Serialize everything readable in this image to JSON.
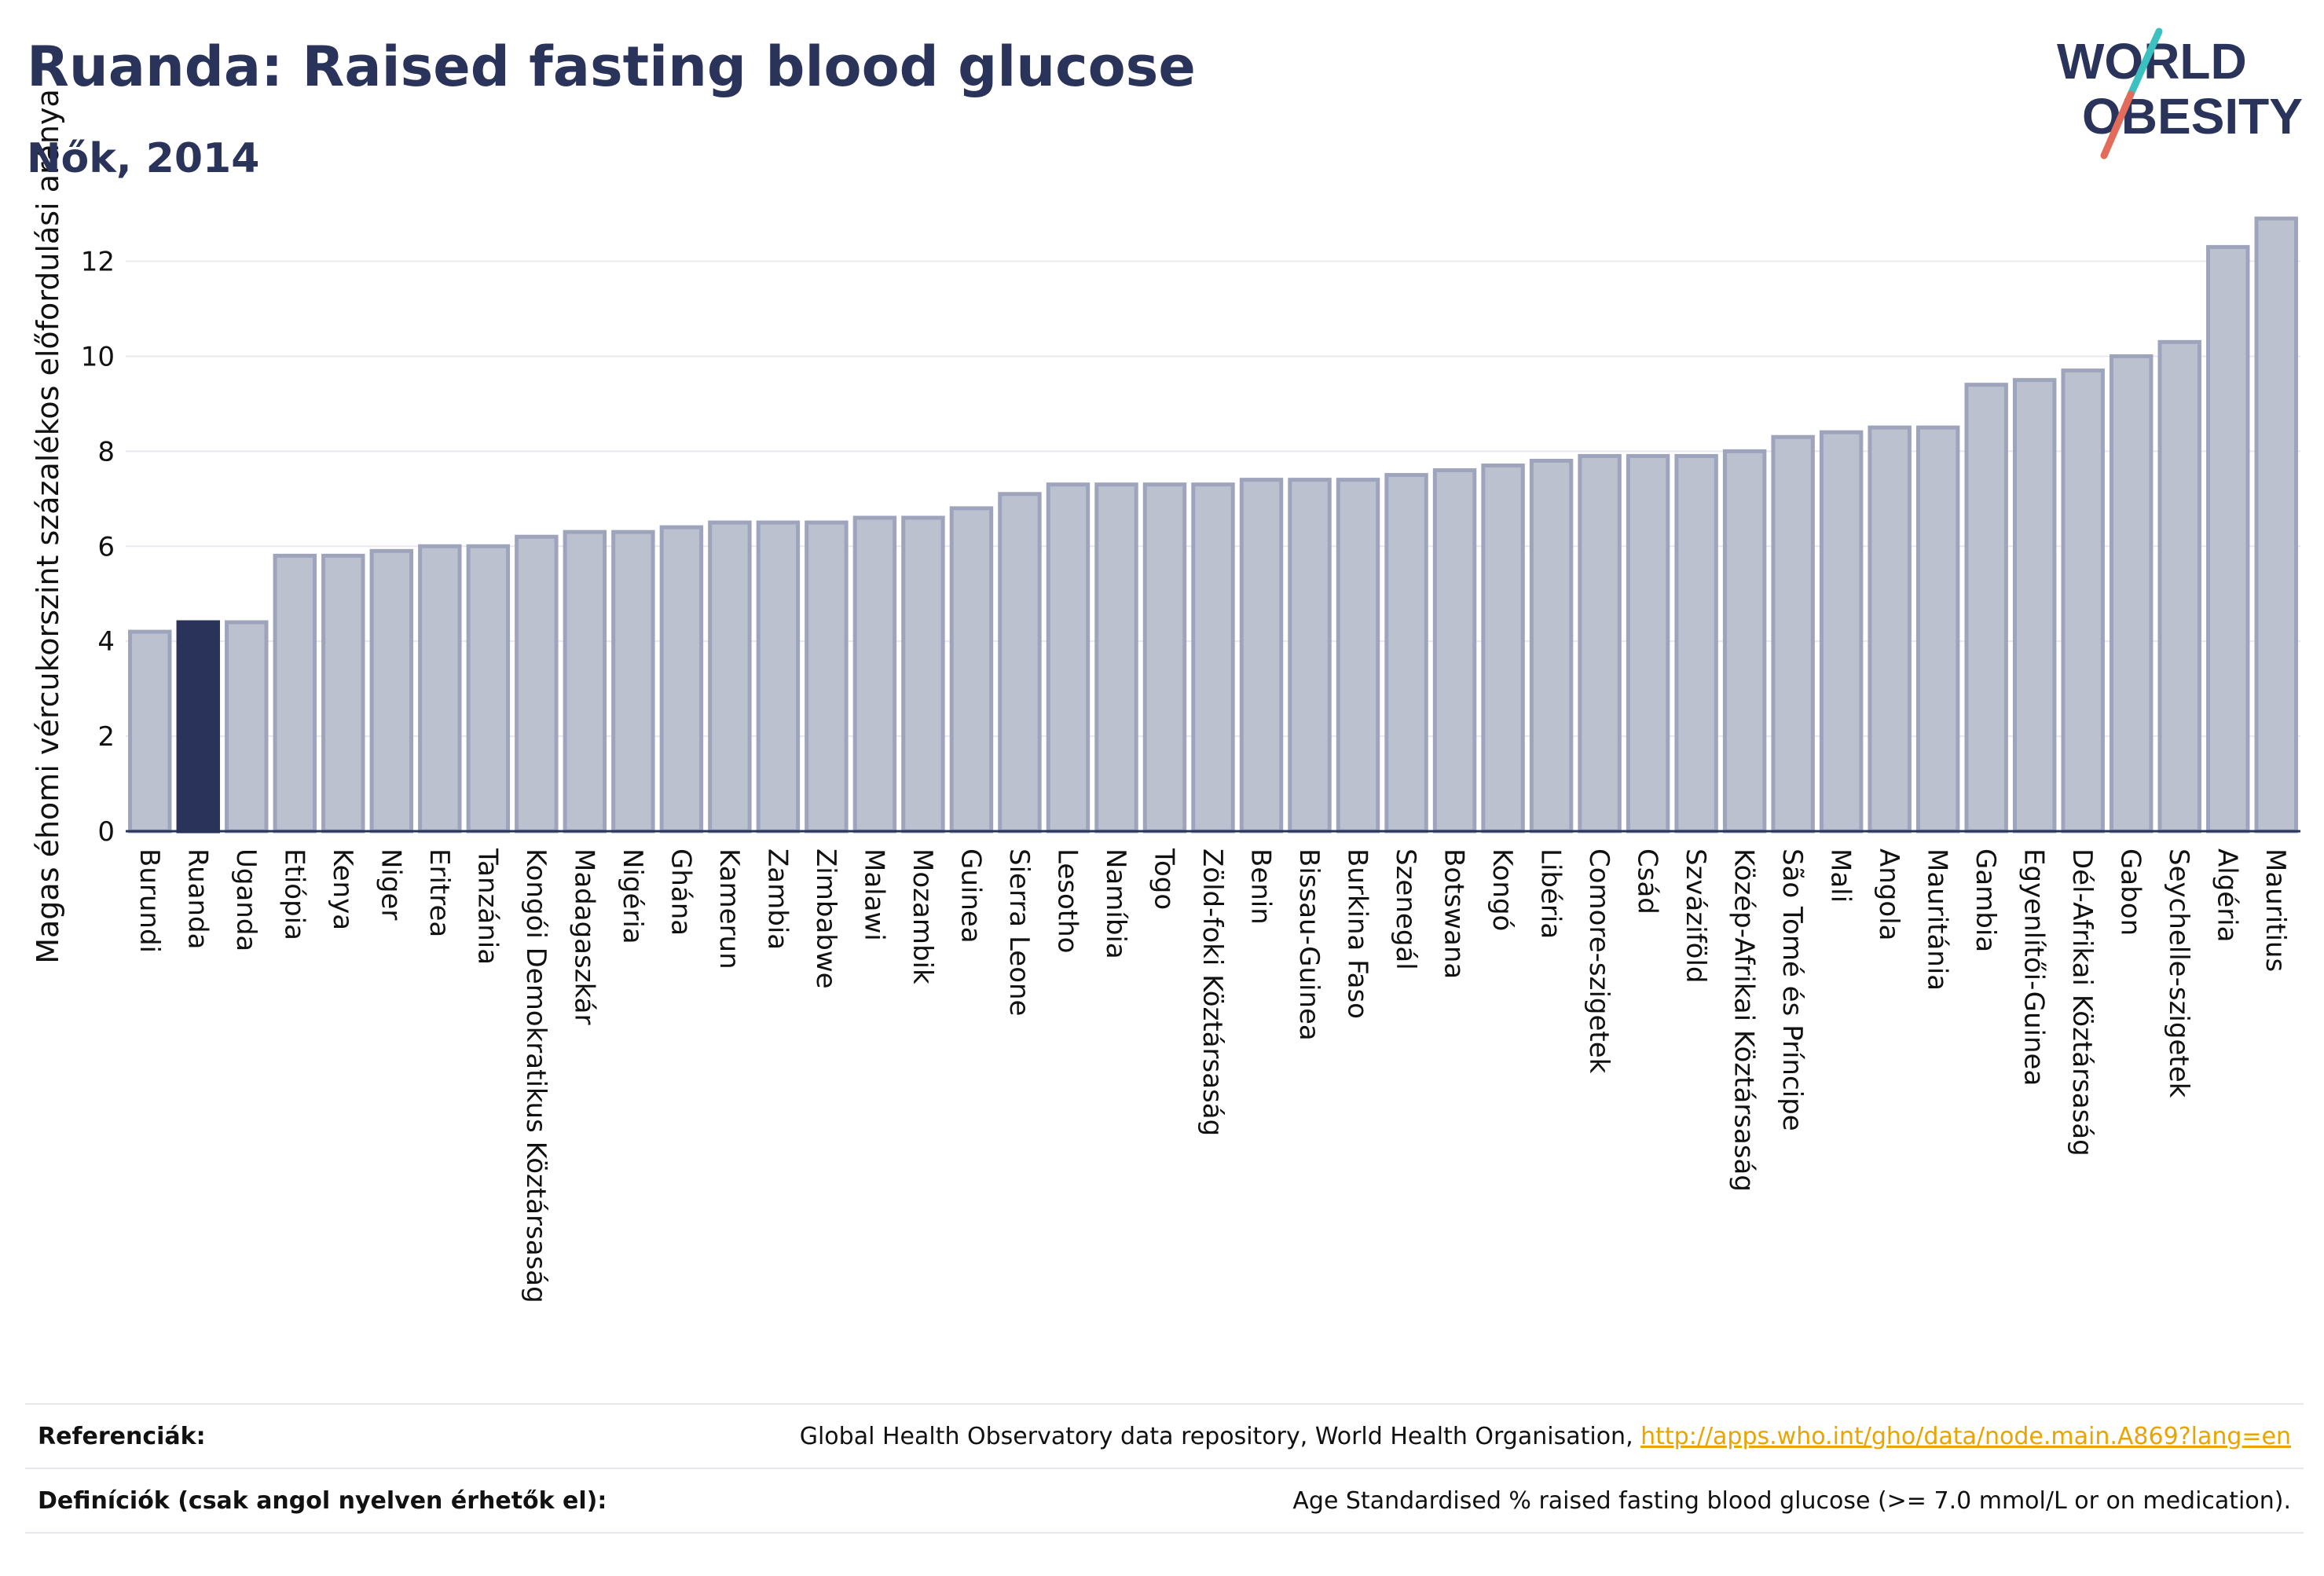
{
  "header": {
    "title": "Ruanda: Raised fasting blood glucose",
    "subtitle": "Nők, 2014"
  },
  "logo": {
    "line1": "WORLD",
    "line2": "OBESITY",
    "icon": "world-obesity-logo",
    "slash_colors": [
      "#3cc0c0",
      "#e36b5a"
    ]
  },
  "colors": {
    "bar_fill": "#bcc1d0",
    "bar_stroke": "#9ea4bc",
    "highlight": "#2a335a",
    "grid": "#e8e8ee",
    "axis": "#2a335a"
  },
  "chart_data": {
    "type": "bar",
    "ylabel": "Magas éhomi vércukorszint százalékos előfordulási aránya",
    "xlabel": "",
    "ylim": [
      0,
      13.2
    ],
    "yticks": [
      0,
      2,
      4,
      6,
      8,
      10,
      12
    ],
    "grid": true,
    "highlight_category": "Ruanda",
    "categories": [
      "Burundi",
      "Ruanda",
      "Uganda",
      "Etiópia",
      "Kenya",
      "Niger",
      "Eritrea",
      "Tanzánia",
      "Kongói Demokratikus Köztársaság",
      "Madagaszkár",
      "Nigéria",
      "Ghána",
      "Kamerun",
      "Zambia",
      "Zimbabwe",
      "Malawi",
      "Mozambik",
      "Guinea",
      "Sierra Leone",
      "Lesotho",
      "Namíbia",
      "Togo",
      "Zöld-foki Köztársaság",
      "Benin",
      "Bissau-Guinea",
      "Burkina Faso",
      "Szenegál",
      "Botswana",
      "Kongó",
      "Libéria",
      "Comore-szigetek",
      "Csád",
      "Szváziföld",
      "Közép-Afrikai Köztársaság",
      "São Tomé és Príncipe",
      "Mali",
      "Angola",
      "Mauritánia",
      "Gambia",
      "Egyenlítői-Guinea",
      "Dél-Afrikai Köztársaság",
      "Gabon",
      "Seychelle-szigetek",
      "Algéria",
      "Mauritius"
    ],
    "values": [
      4.2,
      4.4,
      4.4,
      5.8,
      5.8,
      5.9,
      6.0,
      6.0,
      6.2,
      6.3,
      6.3,
      6.4,
      6.5,
      6.5,
      6.5,
      6.6,
      6.6,
      6.8,
      7.1,
      7.3,
      7.3,
      7.3,
      7.3,
      7.4,
      7.4,
      7.4,
      7.5,
      7.6,
      7.7,
      7.8,
      7.9,
      7.9,
      7.9,
      8.0,
      8.3,
      8.4,
      8.5,
      8.5,
      9.4,
      9.5,
      9.7,
      10.0,
      10.3,
      12.3,
      12.9
    ]
  },
  "footer": {
    "references_label": "Referenciák:",
    "references_text": "Global Health Observatory data repository, World Health Organisation, ",
    "references_link": "http://apps.who.int/gho/data/node.main.A869?lang=en",
    "definitions_label": "Definíciók (csak angol nyelven érhetők el):",
    "definitions_text": "Age Standardised % raised fasting blood glucose (>= 7.0 mmol/L or on medication)."
  }
}
